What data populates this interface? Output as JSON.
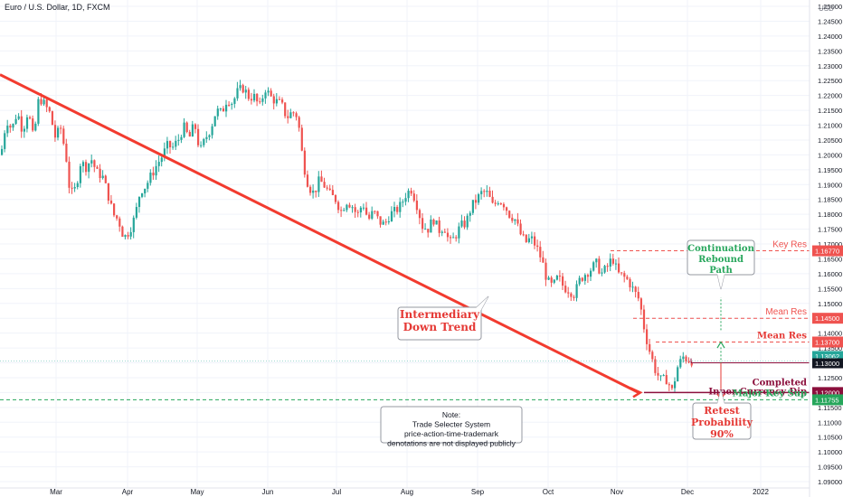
{
  "chart_data": {
    "type": "candlestick",
    "title": "Euro / U.S. Dollar, 1D, FXCM",
    "currency": "USD",
    "colors": {
      "up": "#26a69a",
      "down": "#ef5350",
      "trend": "#f23b2f",
      "grid": "#f0f3fa",
      "axis": "#787b86",
      "green": "#26a65b",
      "red": "#e53935",
      "maroon": "#8b0f3c"
    },
    "x_ticks": [
      "Mar",
      "Apr",
      "May",
      "Jun",
      "Jul",
      "Aug",
      "Sep",
      "Oct",
      "Nov",
      "Dec",
      "2022"
    ],
    "y_range": [
      1.0875,
      1.2525
    ],
    "y_ticks": [
      "1.25000",
      "1.24500",
      "1.24000",
      "1.23500",
      "1.23000",
      "1.22500",
      "1.22000",
      "1.21500",
      "1.21000",
      "1.20500",
      "1.20000",
      "1.19500",
      "1.19000",
      "1.18500",
      "1.18000",
      "1.17500",
      "1.17000",
      "1.16500",
      "1.16000",
      "1.15500",
      "1.15000",
      "1.14500",
      "1.14000",
      "1.13500",
      "1.13000",
      "1.12500",
      "1.12000",
      "1.11500",
      "1.11000",
      "1.10500",
      "1.10000",
      "1.09500",
      "1.09000"
    ],
    "close_path": [
      [
        0,
        1.2
      ],
      [
        6,
        1.212
      ],
      [
        12,
        1.2085
      ],
      [
        18,
        1.2145
      ],
      [
        24,
        1.208
      ],
      [
        30,
        1.215
      ],
      [
        36,
        1.205
      ],
      [
        42,
        1.2195
      ],
      [
        48,
        1.217
      ],
      [
        54,
        1.214
      ],
      [
        60,
        1.206
      ],
      [
        66,
        1.209
      ],
      [
        72,
        1.1995
      ],
      [
        76,
        1.188
      ],
      [
        80,
        1.1865
      ],
      [
        84,
        1.191
      ],
      [
        88,
        1.1975
      ],
      [
        94,
        1.196
      ],
      [
        100,
        1.1985
      ],
      [
        106,
        1.194
      ],
      [
        112,
        1.193
      ],
      [
        118,
        1.187
      ],
      [
        124,
        1.18
      ],
      [
        130,
        1.178
      ],
      [
        136,
        1.172
      ],
      [
        142,
        1.1745
      ],
      [
        148,
        1.179
      ],
      [
        154,
        1.188
      ],
      [
        160,
        1.1895
      ],
      [
        166,
        1.193
      ],
      [
        172,
        1.1965
      ],
      [
        178,
        1.1995
      ],
      [
        184,
        1.203
      ],
      [
        190,
        1.2025
      ],
      [
        196,
        1.205
      ],
      [
        202,
        1.2095
      ],
      [
        208,
        1.2055
      ],
      [
        214,
        1.2105
      ],
      [
        220,
        1.201
      ],
      [
        226,
        1.2055
      ],
      [
        232,
        1.209
      ],
      [
        238,
        1.215
      ],
      [
        244,
        1.214
      ],
      [
        250,
        1.219
      ],
      [
        256,
        1.2175
      ],
      [
        262,
        1.2215
      ],
      [
        268,
        1.2225
      ],
      [
        274,
        1.2195
      ],
      [
        280,
        1.2195
      ],
      [
        286,
        1.216
      ],
      [
        292,
        1.2225
      ],
      [
        298,
        1.2195
      ],
      [
        304,
        1.218
      ],
      [
        310,
        1.217
      ],
      [
        316,
        1.2125
      ],
      [
        322,
        1.2145
      ],
      [
        328,
        1.213
      ],
      [
        334,
        1.1975
      ],
      [
        340,
        1.1895
      ],
      [
        346,
        1.187
      ],
      [
        352,
        1.1915
      ],
      [
        358,
        1.1895
      ],
      [
        364,
        1.1865
      ],
      [
        370,
        1.185
      ],
      [
        376,
        1.181
      ],
      [
        382,
        1.1845
      ],
      [
        388,
        1.183
      ],
      [
        394,
        1.1795
      ],
      [
        400,
        1.184
      ],
      [
        406,
        1.178
      ],
      [
        412,
        1.181
      ],
      [
        418,
        1.1775
      ],
      [
        424,
        1.1765
      ],
      [
        430,
        1.18
      ],
      [
        436,
        1.181
      ],
      [
        442,
        1.183
      ],
      [
        448,
        1.187
      ],
      [
        454,
        1.1885
      ],
      [
        460,
        1.183
      ],
      [
        466,
        1.176
      ],
      [
        472,
        1.175
      ],
      [
        478,
        1.1785
      ],
      [
        484,
        1.1745
      ],
      [
        490,
        1.176
      ],
      [
        496,
        1.17
      ],
      [
        502,
        1.1725
      ],
      [
        508,
        1.176
      ],
      [
        514,
        1.177
      ],
      [
        520,
        1.1825
      ],
      [
        526,
        1.185
      ],
      [
        532,
        1.1875
      ],
      [
        538,
        1.187
      ],
      [
        544,
        1.1825
      ],
      [
        550,
        1.185
      ],
      [
        556,
        1.1835
      ],
      [
        562,
        1.18
      ],
      [
        568,
        1.1785
      ],
      [
        574,
        1.1735
      ],
      [
        580,
        1.1705
      ],
      [
        586,
        1.172
      ],
      [
        592,
        1.169
      ],
      [
        598,
        1.1645
      ],
      [
        604,
        1.1575
      ],
      [
        610,
        1.1555
      ],
      [
        616,
        1.159
      ],
      [
        622,
        1.1555
      ],
      [
        628,
        1.1545
      ],
      [
        634,
        1.153
      ],
      [
        640,
        1.158
      ],
      [
        646,
        1.16
      ],
      [
        652,
        1.1615
      ],
      [
        658,
        1.1635
      ],
      [
        664,
        1.16
      ],
      [
        670,
        1.162
      ],
      [
        676,
        1.1655
      ],
      [
        682,
        1.16
      ],
      [
        688,
        1.159
      ],
      [
        694,
        1.1575
      ],
      [
        700,
        1.154
      ],
      [
        706,
        1.151
      ],
      [
        712,
        1.14
      ],
      [
        718,
        1.133
      ],
      [
        724,
        1.127
      ],
      [
        730,
        1.124
      ],
      [
        736,
        1.1245
      ],
      [
        742,
        1.1205
      ],
      [
        748,
        1.1285
      ],
      [
        754,
        1.132
      ],
      [
        760,
        1.131
      ],
      [
        766,
        1.1306
      ]
    ],
    "series": [],
    "levels": [
      {
        "label": "Key Res",
        "value": "1.16770",
        "price": 1.1677,
        "color": "#ef5350",
        "label_color": "#ef5350",
        "bold": false,
        "x_start": 675
      },
      {
        "label": "Mean Res",
        "value": "1.14500",
        "price": 1.145,
        "color": "#ef5350",
        "label_color": "#ef5350",
        "bold": false,
        "x_start": 700
      },
      {
        "label": "Mean Res",
        "value": "1.13700",
        "price": 1.137,
        "color": "#ef5350",
        "label_color": "#e53935",
        "bold": true,
        "x_start": 725
      },
      {
        "label": "Completed\nInner Currency Dip",
        "value": "1.12000",
        "price": 1.12,
        "color": "#8b0f3c",
        "label_color": "#8b0f3c",
        "bold": true,
        "x_start": 712
      },
      {
        "label": "Major Key Sup",
        "value": "1.11755",
        "price": 1.11755,
        "color": "#26a65b",
        "label_color": "#26a65b",
        "bold": true,
        "x_start": 0
      }
    ],
    "current_price": {
      "value": "1.13062",
      "price": 1.13062
    },
    "mid_marker": {
      "value": "1.13000",
      "price": 1.13
    },
    "annotations": [
      {
        "id": "down-trend",
        "text": "Intermediary\nDown Trend",
        "color": "#e53935"
      },
      {
        "id": "continuation",
        "text": "Continuation\nRebound\nPath",
        "color": "#26a65b"
      },
      {
        "id": "retest",
        "text": "Retest\nProbability\n90%",
        "color": "#e53935"
      },
      {
        "id": "note",
        "text": "Note:\nTrade Selecter System\nprice-action-time-trademark\ndenotations are not displayed publicly",
        "color": "#131722"
      }
    ]
  }
}
